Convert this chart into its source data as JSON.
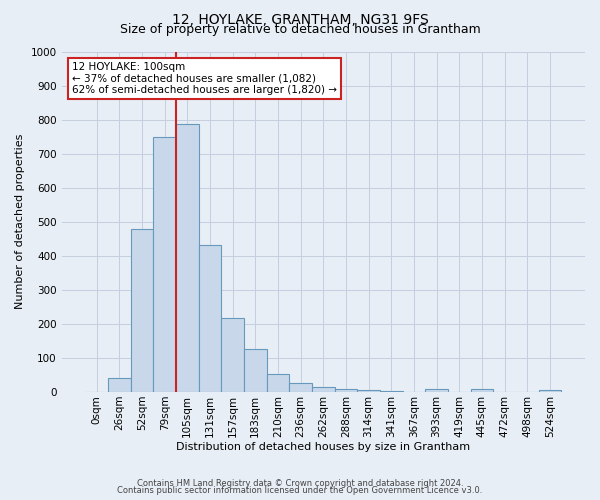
{
  "title": "12, HOYLAKE, GRANTHAM, NG31 9FS",
  "subtitle": "Size of property relative to detached houses in Grantham",
  "xlabel": "Distribution of detached houses by size in Grantham",
  "ylabel": "Number of detached properties",
  "bar_labels": [
    "0sqm",
    "26sqm",
    "52sqm",
    "79sqm",
    "105sqm",
    "131sqm",
    "157sqm",
    "183sqm",
    "210sqm",
    "236sqm",
    "262sqm",
    "288sqm",
    "314sqm",
    "341sqm",
    "367sqm",
    "393sqm",
    "419sqm",
    "445sqm",
    "472sqm",
    "498sqm",
    "524sqm"
  ],
  "bar_values": [
    0,
    42,
    480,
    748,
    788,
    432,
    217,
    125,
    53,
    28,
    15,
    10,
    5,
    2,
    0,
    8,
    0,
    8,
    0,
    0,
    5
  ],
  "bar_color": "#c8d8ea",
  "bar_edgecolor": "#6699bb",
  "annotation_title": "12 HOYLAKE: 100sqm",
  "annotation_line1": "← 37% of detached houses are smaller (1,082)",
  "annotation_line2": "62% of semi-detached houses are larger (1,820) →",
  "annotation_box_facecolor": "#ffffff",
  "annotation_box_edgecolor": "#cc2222",
  "ylim": [
    0,
    1000
  ],
  "yticks": [
    0,
    100,
    200,
    300,
    400,
    500,
    600,
    700,
    800,
    900,
    1000
  ],
  "grid_color": "#c5cfe0",
  "background_color": "#e8eef5",
  "plot_bg_color": "#e8eef5",
  "footer_line1": "Contains HM Land Registry data © Crown copyright and database right 2024.",
  "footer_line2": "Contains public sector information licensed under the Open Government Licence v3.0.",
  "title_fontsize": 10,
  "subtitle_fontsize": 9,
  "ylabel_fontsize": 8,
  "xlabel_fontsize": 8,
  "tick_fontsize": 7.5,
  "footer_fontsize": 6
}
